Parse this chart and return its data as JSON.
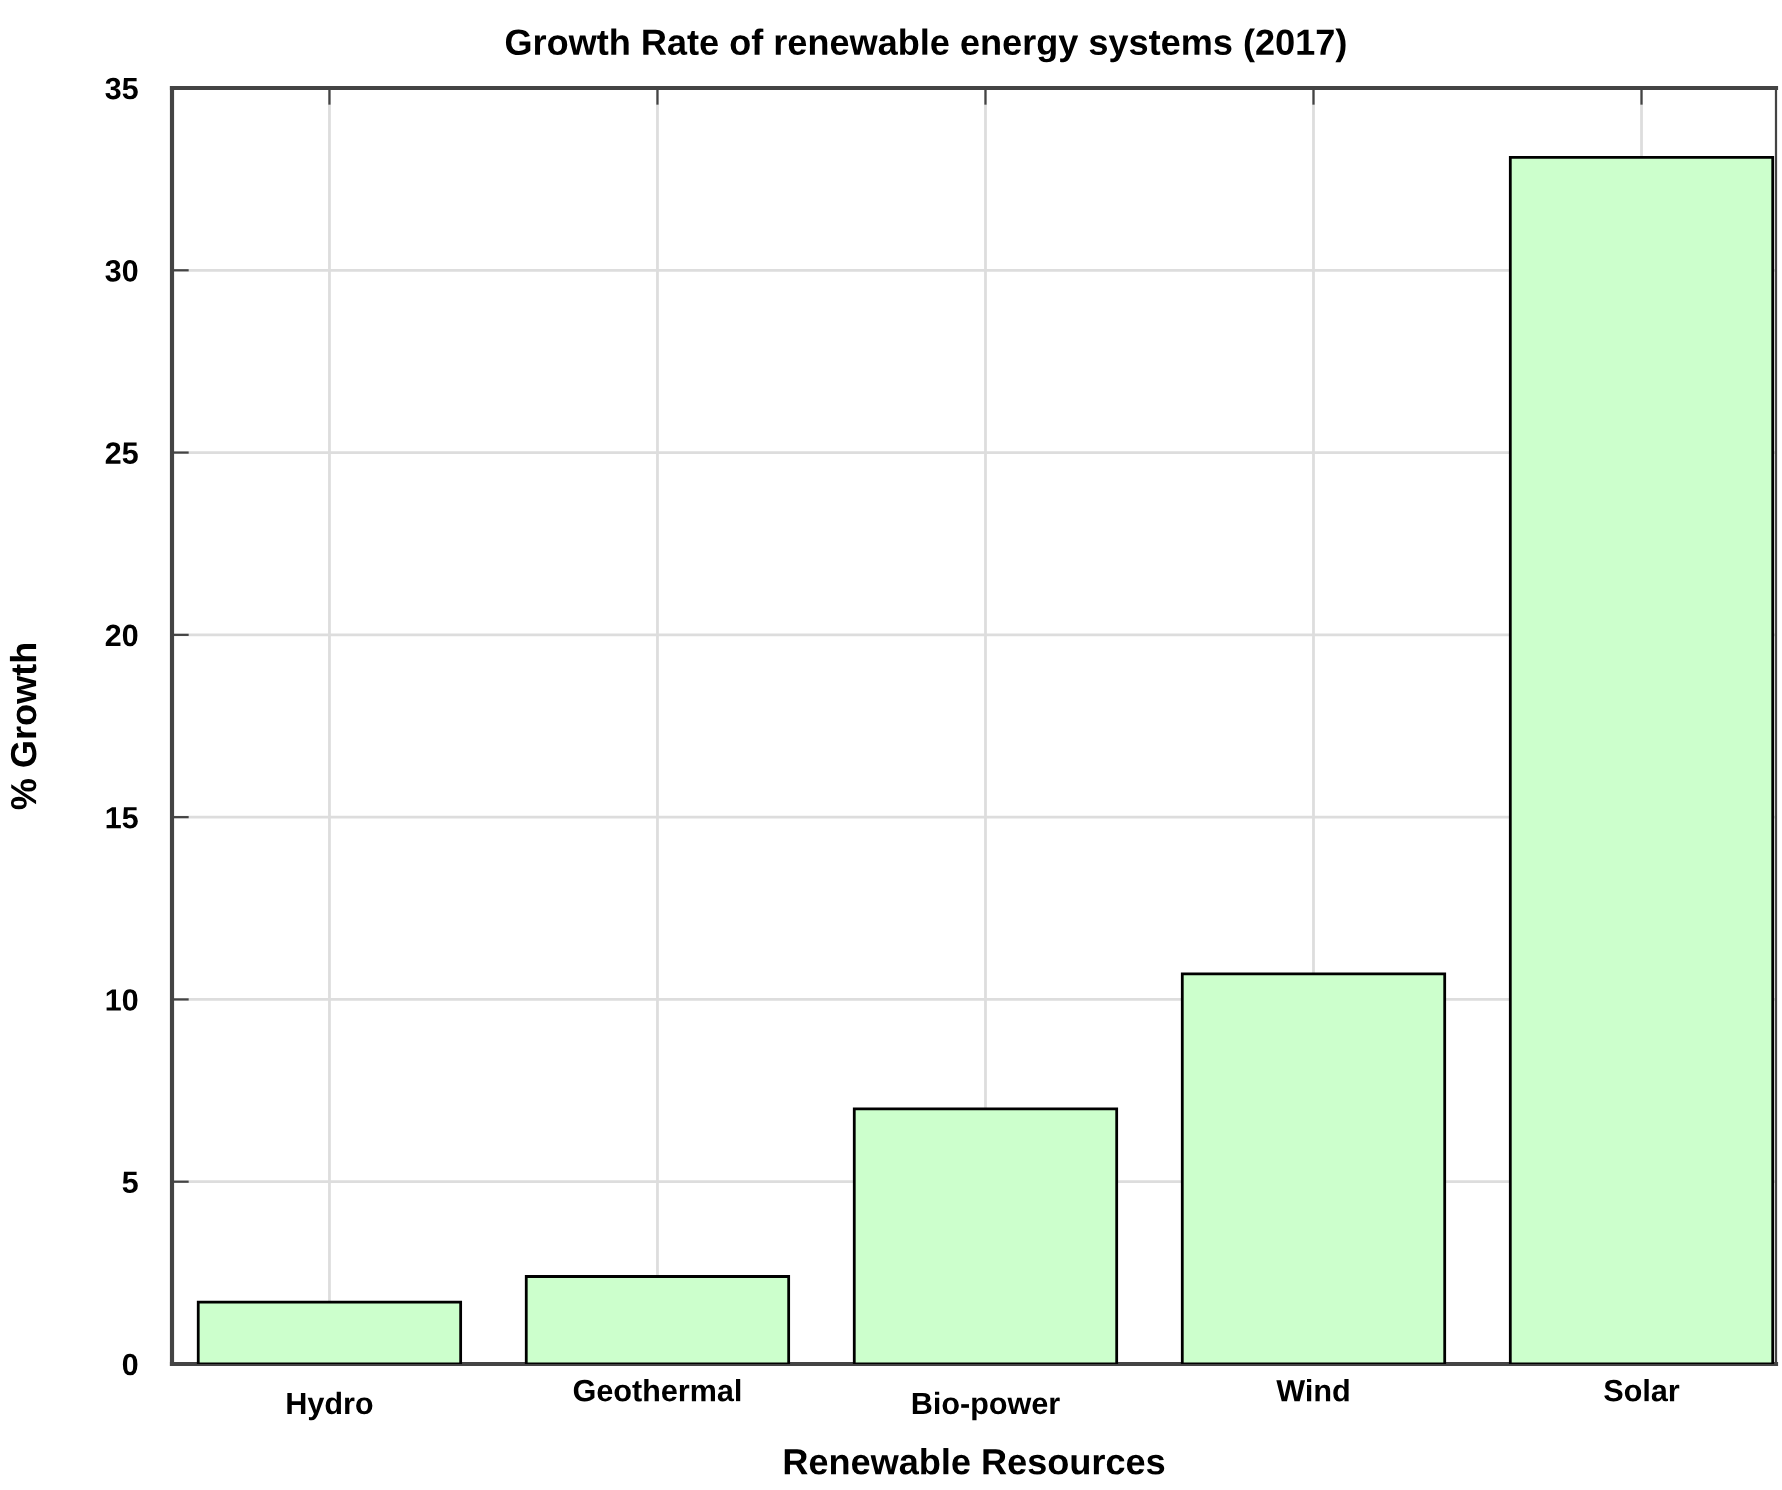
{
  "chart_data": {
    "type": "bar",
    "title": "Growth Rate of renewable energy systems (2017)",
    "xlabel": "Renewable Resources",
    "ylabel": "% Growth",
    "categories": [
      "Hydro",
      "Geothermal",
      "Bio-power",
      "Wind",
      "Solar"
    ],
    "values": [
      1.7,
      2.4,
      7.0,
      10.7,
      33.1
    ],
    "color": "#ccffcc",
    "ylim": [
      0,
      35
    ],
    "yticks": [
      0,
      5,
      10,
      15,
      20,
      25,
      30,
      35
    ],
    "grid": true
  }
}
